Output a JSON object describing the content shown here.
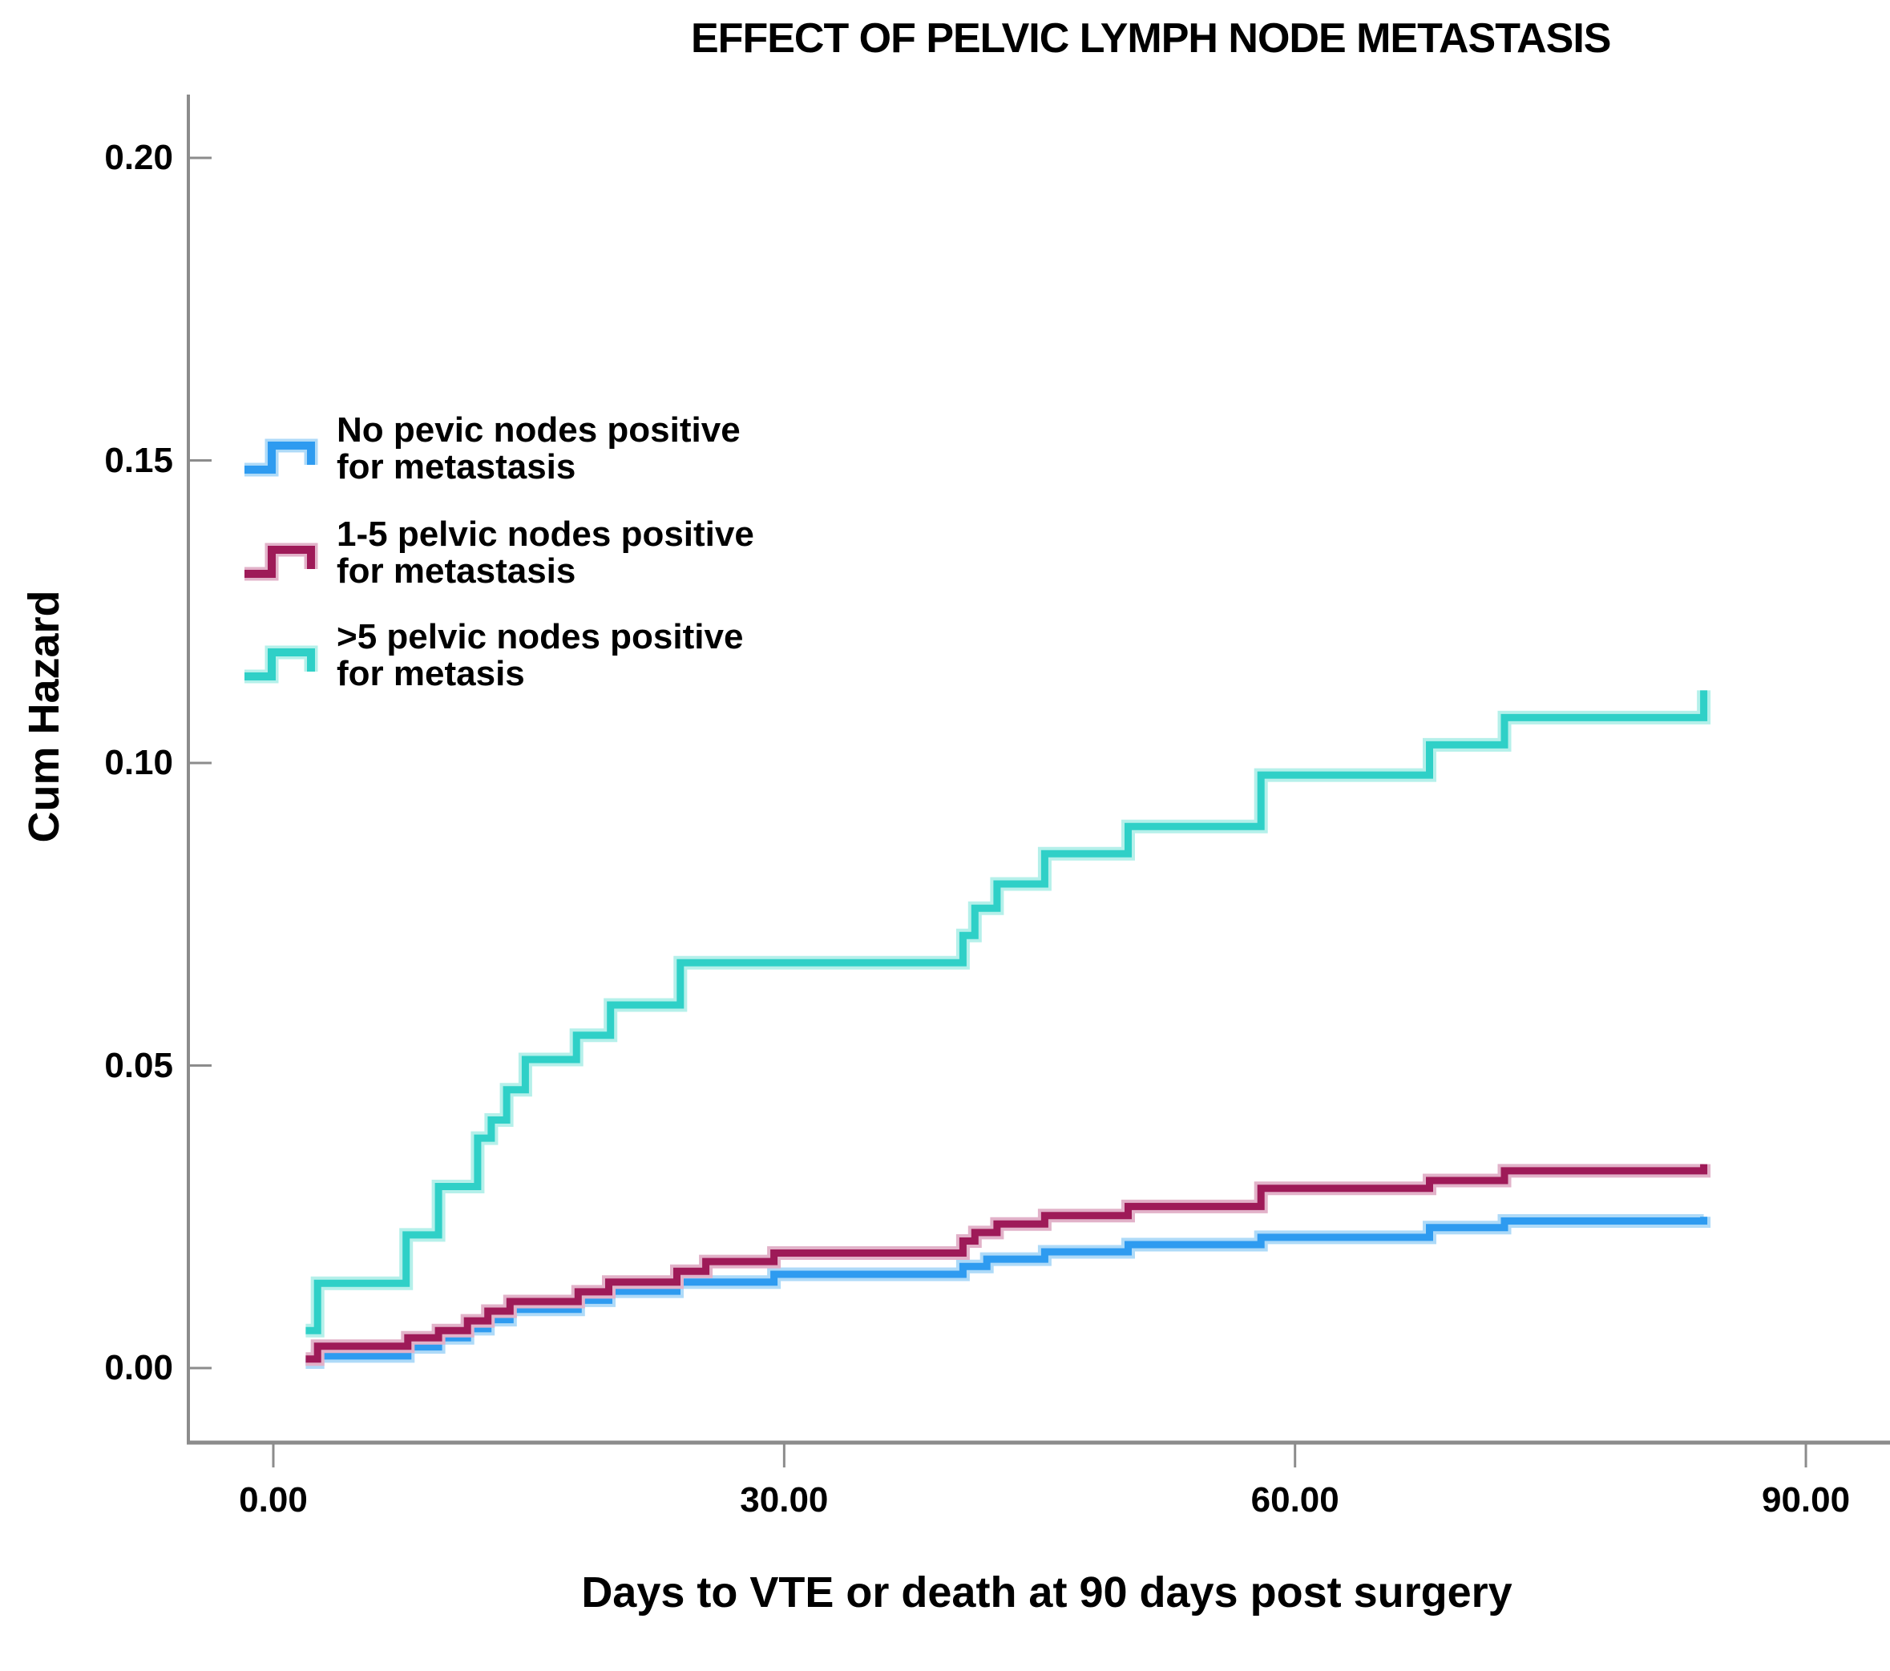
{
  "title": "EFFECT OF PELVIC LYMPH NODE METASTASIS",
  "axes": {
    "y_label": "Cum Hazard",
    "x_label": "Days to VTE or death at 90 days post surgery"
  },
  "colors": {
    "axis_gray": "#8C8C8C",
    "text_black": "#000000",
    "background": "#FFFFFF"
  },
  "legend": {
    "items": [
      {
        "line1": "No pevic nodes positive",
        "line2": "for metastasis"
      },
      {
        "line1": "1-5 pelvic nodes positive",
        "line2": "for metastasis"
      },
      {
        "line1": ">5  pelvic nodes positive",
        "line2": "for metasis"
      }
    ]
  },
  "chart_data": {
    "type": "line",
    "subtype": "step-after-cumulative-hazard",
    "title": "EFFECT OF PELVIC LYMPH NODE METASTASIS",
    "xlabel": "Days to VTE or death at 90 days post surgery",
    "ylabel": "Cum Hazard",
    "xlim": [
      -5,
      95
    ],
    "ylim": [
      -0.012,
      0.21
    ],
    "grid": false,
    "legend_position": "upper-left-inside",
    "x_ticks": [
      {
        "value": 0,
        "label": "0.00"
      },
      {
        "value": 30,
        "label": "30.00"
      },
      {
        "value": 60,
        "label": "60.00"
      },
      {
        "value": 90,
        "label": "90.00"
      }
    ],
    "y_ticks": [
      {
        "value": 0.0,
        "label": "0.00"
      },
      {
        "value": 0.05,
        "label": "0.05"
      },
      {
        "value": 0.1,
        "label": "0.10"
      },
      {
        "value": 0.15,
        "label": "0.15"
      },
      {
        "value": 0.2,
        "label": "0.20"
      }
    ],
    "series": [
      {
        "name": "no-pelvic-nodes-positive",
        "legend_line1": "No pevic nodes positive",
        "legend_line2": "for metastasis",
        "color": "#2E9BF0",
        "halo": "#AEDAF8",
        "points": [
          [
            1.9,
            0.001
          ],
          [
            2.6,
            0.002
          ],
          [
            7.9,
            0.0035
          ],
          [
            9.7,
            0.005
          ],
          [
            11.4,
            0.0065
          ],
          [
            12.6,
            0.008
          ],
          [
            13.9,
            0.0097
          ],
          [
            17.9,
            0.0112
          ],
          [
            19.7,
            0.0127
          ],
          [
            23.7,
            0.0142
          ],
          [
            29.4,
            0.0155
          ],
          [
            40.5,
            0.0168
          ],
          [
            41.9,
            0.018
          ],
          [
            45.3,
            0.0192
          ],
          [
            50.2,
            0.0204
          ],
          [
            58.0,
            0.0216
          ],
          [
            67.9,
            0.0232
          ],
          [
            72.3,
            0.0243
          ],
          [
            84.0,
            0.025
          ]
        ]
      },
      {
        "name": "1-5-pelvic-nodes-positive",
        "legend_line1": "1-5 pelvic nodes positive",
        "legend_line2": "for metastasis",
        "color": "#9E1A58",
        "halo": "#E2B2C9",
        "points": [
          [
            1.9,
            0.0015
          ],
          [
            2.6,
            0.0036
          ],
          [
            7.9,
            0.005
          ],
          [
            9.7,
            0.0062
          ],
          [
            11.4,
            0.0078
          ],
          [
            12.6,
            0.0094
          ],
          [
            13.9,
            0.011
          ],
          [
            17.9,
            0.0126
          ],
          [
            19.7,
            0.0142
          ],
          [
            23.7,
            0.016
          ],
          [
            25.4,
            0.0176
          ],
          [
            29.4,
            0.019
          ],
          [
            40.5,
            0.021
          ],
          [
            41.2,
            0.0224
          ],
          [
            42.5,
            0.0238
          ],
          [
            45.3,
            0.0252
          ],
          [
            50.2,
            0.0267
          ],
          [
            58.0,
            0.0297
          ],
          [
            67.9,
            0.031
          ],
          [
            72.3,
            0.0326
          ],
          [
            84.0,
            0.0337
          ]
        ]
      },
      {
        "name": "gt5-pelvic-nodes-positive",
        "legend_line1": ">5  pelvic nodes positive",
        "legend_line2": "for metasis",
        "color": "#2FD0C7",
        "halo": "#B5F0EA",
        "points": [
          [
            1.9,
            0.0062
          ],
          [
            2.6,
            0.014
          ],
          [
            7.8,
            0.022
          ],
          [
            9.7,
            0.03
          ],
          [
            12.0,
            0.038
          ],
          [
            12.8,
            0.041
          ],
          [
            13.7,
            0.046
          ],
          [
            14.8,
            0.051
          ],
          [
            17.8,
            0.055
          ],
          [
            19.8,
            0.06
          ],
          [
            23.9,
            0.067
          ],
          [
            40.5,
            0.0715
          ],
          [
            41.2,
            0.076
          ],
          [
            42.5,
            0.08
          ],
          [
            45.3,
            0.085
          ],
          [
            50.2,
            0.0895
          ],
          [
            58.0,
            0.098
          ],
          [
            67.9,
            0.103
          ],
          [
            72.3,
            0.1075
          ],
          [
            84.0,
            0.112
          ]
        ]
      }
    ]
  }
}
